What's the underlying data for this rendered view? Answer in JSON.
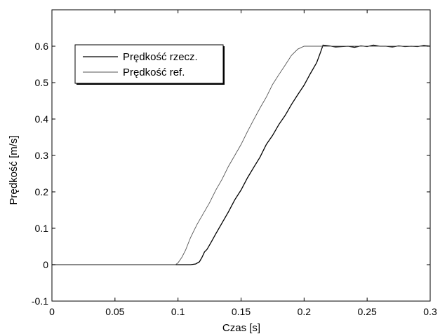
{
  "chart_data": {
    "type": "line",
    "title": "",
    "xlabel": "Czas [s]",
    "ylabel": "Prędkość [m/s]",
    "xlim": [
      0,
      0.3
    ],
    "ylim": [
      -0.1,
      0.7
    ],
    "xticks": [
      0,
      0.05,
      0.1,
      0.15,
      0.2,
      0.25,
      0.3
    ],
    "xtick_labels": [
      "0",
      "0.05",
      "0.1",
      "0.15",
      "0.2",
      "0.25",
      "0.3"
    ],
    "yticks": [
      -0.1,
      0,
      0.1,
      0.2,
      0.3,
      0.4,
      0.5,
      0.6
    ],
    "ytick_labels": [
      "-0.1",
      "0",
      "0.1",
      "0.2",
      "0.3",
      "0.4",
      "0.5",
      "0.6"
    ],
    "grid": false,
    "legend_position": "top-left",
    "series": [
      {
        "name": "Prędkość rzecz.",
        "color": "#000000",
        "x": [
          0,
          0.1,
          0.11,
          0.114,
          0.117,
          0.119,
          0.121,
          0.123,
          0.126,
          0.13,
          0.135,
          0.14,
          0.145,
          0.15,
          0.155,
          0.16,
          0.165,
          0.17,
          0.175,
          0.18,
          0.185,
          0.19,
          0.195,
          0.2,
          0.205,
          0.21,
          0.213,
          0.215,
          0.22,
          0.225,
          0.23,
          0.235,
          0.24,
          0.245,
          0.25,
          0.255,
          0.26,
          0.265,
          0.27,
          0.275,
          0.28,
          0.285,
          0.29,
          0.295,
          0.3
        ],
        "y": [
          0,
          0,
          0,
          0.002,
          0.008,
          0.02,
          0.035,
          0.042,
          0.06,
          0.085,
          0.115,
          0.145,
          0.178,
          0.205,
          0.238,
          0.267,
          0.295,
          0.33,
          0.355,
          0.385,
          0.41,
          0.44,
          0.467,
          0.493,
          0.525,
          0.555,
          0.583,
          0.603,
          0.601,
          0.598,
          0.599,
          0.6,
          0.597,
          0.601,
          0.599,
          0.603,
          0.6,
          0.6,
          0.598,
          0.601,
          0.599,
          0.6,
          0.599,
          0.602,
          0.6
        ]
      },
      {
        "name": "Prędkość ref.",
        "color": "#555555",
        "x": [
          0,
          0.098,
          0.1,
          0.103,
          0.106,
          0.11,
          0.115,
          0.12,
          0.125,
          0.13,
          0.135,
          0.14,
          0.145,
          0.15,
          0.155,
          0.16,
          0.165,
          0.17,
          0.175,
          0.18,
          0.185,
          0.19,
          0.195,
          0.2,
          0.203,
          0.21,
          0.25,
          0.3
        ],
        "y": [
          0,
          0,
          0.005,
          0.02,
          0.04,
          0.075,
          0.11,
          0.14,
          0.17,
          0.205,
          0.235,
          0.27,
          0.3,
          0.33,
          0.365,
          0.398,
          0.43,
          0.46,
          0.495,
          0.522,
          0.548,
          0.575,
          0.592,
          0.6,
          0.6,
          0.6,
          0.6,
          0.6
        ]
      }
    ]
  }
}
